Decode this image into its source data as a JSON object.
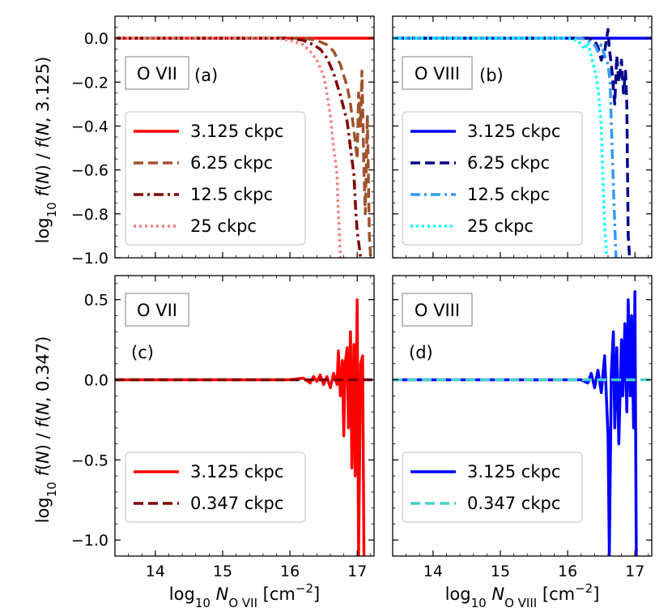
{
  "figure": {
    "ylabel_top_html": "log<tspan baseline-shift='sub' font-size='15'>10</tspan> <tspan font-style='italic'>f</tspan>(<tspan font-style='italic'>N</tspan>) / <tspan font-style='italic'>f</tspan>(<tspan font-style='italic'>N</tspan>, 3.125)",
    "ylabel_bottom_html": "log<tspan baseline-shift='sub' font-size='15'>10</tspan> <tspan font-style='italic'>f</tspan>(<tspan font-style='italic'>N</tspan>) / <tspan font-style='italic'>f</tspan>(<tspan font-style='italic'>N</tspan>, 0.347)",
    "ylabel_top_text": "log10 f(N) / f(N, 3.125)",
    "ylabel_bottom_text": "log10 f(N) / f(N, 0.347)",
    "xlabel_left_text": "log10 N_O VII [cm^-2]",
    "xlabel_right_text": "log10 N_O VIII [cm^-2]"
  },
  "chart_data": [
    {
      "id": "a",
      "type": "line",
      "panel_label": "(a)",
      "ion_label": "O VII",
      "xlim": [
        13.4,
        17.25
      ],
      "ylim": [
        -1.0,
        0.1
      ],
      "xticks": [
        14,
        15,
        16,
        17
      ],
      "yticks": [
        0.0,
        -0.2,
        -0.4,
        -0.6,
        -0.8,
        -1.0
      ],
      "ytick_labels": [
        "0.0",
        "−0.2",
        "−0.4",
        "−0.6",
        "−0.8",
        "−1.0"
      ],
      "legend": [
        "3.125 ckpc",
        "6.25 ckpc",
        "12.5 ckpc",
        "25 ckpc"
      ],
      "series": [
        {
          "name": "3.125 ckpc",
          "color": "#ff0000",
          "dash": "solid",
          "x": [
            13.4,
            17.25
          ],
          "y": [
            0.0,
            0.0
          ]
        },
        {
          "name": "6.25 ckpc",
          "color": "#a0522d",
          "dash": "dashed",
          "x": [
            13.4,
            16.2,
            16.4,
            16.55,
            16.65,
            16.75,
            16.85,
            16.9,
            16.95,
            17.0,
            17.02,
            17.05,
            17.07,
            17.1,
            17.12,
            17.15,
            17.18,
            17.2
          ],
          "y": [
            0.0,
            0.0,
            -0.01,
            -0.03,
            -0.06,
            -0.12,
            -0.22,
            -0.3,
            -0.42,
            -0.55,
            -0.25,
            -0.4,
            -0.15,
            -0.6,
            -0.8,
            -0.35,
            -0.9,
            -1.0
          ]
        },
        {
          "name": "12.5 ckpc",
          "color": "#800000",
          "dash": "dashdot",
          "x": [
            13.4,
            16.0,
            16.2,
            16.35,
            16.45,
            16.55,
            16.65,
            16.75,
            16.85,
            16.9,
            16.95,
            16.98,
            17.0,
            17.03,
            17.05
          ],
          "y": [
            0.0,
            0.0,
            -0.01,
            -0.03,
            -0.05,
            -0.09,
            -0.16,
            -0.26,
            -0.38,
            -0.5,
            -0.62,
            -0.8,
            -0.88,
            -0.95,
            -1.0
          ]
        },
        {
          "name": "25 ckpc",
          "color": "#f08080",
          "dash": "dotted",
          "x": [
            13.4,
            15.8,
            16.0,
            16.2,
            16.3,
            16.4,
            16.5,
            16.55,
            16.6,
            16.65,
            16.7,
            16.72,
            16.75
          ],
          "y": [
            0.0,
            0.0,
            -0.01,
            -0.03,
            -0.06,
            -0.1,
            -0.17,
            -0.25,
            -0.35,
            -0.5,
            -0.62,
            -0.8,
            -1.0
          ]
        }
      ]
    },
    {
      "id": "b",
      "type": "line",
      "panel_label": "(b)",
      "ion_label": "O VIII",
      "xlim": [
        13.4,
        17.25
      ],
      "ylim": [
        -1.0,
        0.1
      ],
      "xticks": [
        14,
        15,
        16,
        17
      ],
      "yticks": [
        0.0,
        -0.2,
        -0.4,
        -0.6,
        -0.8,
        -1.0
      ],
      "legend": [
        "3.125 ckpc",
        "6.25 ckpc",
        "12.5 ckpc",
        "25 ckpc"
      ],
      "series": [
        {
          "name": "3.125 ckpc",
          "color": "#0000ff",
          "dash": "solid",
          "x": [
            13.4,
            17.25
          ],
          "y": [
            0.0,
            0.0
          ]
        },
        {
          "name": "6.25 ckpc",
          "color": "#00008b",
          "dash": "dashed",
          "x": [
            13.4,
            16.3,
            16.4,
            16.45,
            16.5,
            16.55,
            16.6,
            16.62,
            16.65,
            16.7,
            16.73,
            16.76,
            16.8,
            16.83,
            16.86,
            16.88,
            16.9,
            16.92
          ],
          "y": [
            0.0,
            0.0,
            -0.01,
            -0.04,
            -0.1,
            -0.06,
            0.04,
            -0.05,
            -0.12,
            -0.3,
            -0.08,
            -0.2,
            -0.1,
            -0.25,
            -0.15,
            -0.3,
            -0.9,
            -1.0
          ]
        },
        {
          "name": "12.5 ckpc",
          "color": "#3399ff",
          "dash": "dashdot",
          "x": [
            13.4,
            16.2,
            16.3,
            16.4,
            16.45,
            16.5,
            16.55,
            16.6,
            16.63,
            16.66,
            16.7,
            16.72
          ],
          "y": [
            0.0,
            0.0,
            -0.01,
            -0.03,
            -0.06,
            -0.03,
            -0.08,
            -0.12,
            -0.2,
            -0.5,
            -0.85,
            -1.0
          ]
        },
        {
          "name": "25 ckpc",
          "color": "#00ffff",
          "dash": "dotted",
          "x": [
            13.4,
            16.0,
            16.15,
            16.25,
            16.3,
            16.35,
            16.4,
            16.45,
            16.5,
            16.52,
            16.55,
            16.58
          ],
          "y": [
            0.0,
            0.0,
            -0.01,
            -0.05,
            -0.02,
            -0.08,
            -0.14,
            -0.22,
            -0.4,
            -0.6,
            -0.85,
            -1.0
          ]
        }
      ]
    },
    {
      "id": "c",
      "type": "line",
      "panel_label": "(c)",
      "ion_label": "O VII",
      "xlim": [
        13.4,
        17.25
      ],
      "ylim": [
        -1.1,
        0.65
      ],
      "xticks": [
        14,
        15,
        16,
        17
      ],
      "xtick_labels": [
        "14",
        "15",
        "16",
        "17"
      ],
      "yticks": [
        0.5,
        0.0,
        -0.5,
        -1.0
      ],
      "ytick_labels": [
        "0.5",
        "0.0",
        "−0.5",
        "−1.0"
      ],
      "legend": [
        "3.125 ckpc",
        "0.347 ckpc"
      ],
      "series": [
        {
          "name": "3.125 ckpc",
          "color": "#ff0000",
          "dash": "solid",
          "x": [
            13.4,
            16.0,
            16.2,
            16.3,
            16.35,
            16.4,
            16.45,
            16.5,
            16.55,
            16.6,
            16.65,
            16.7,
            16.72,
            16.75,
            16.78,
            16.8,
            16.82,
            16.85,
            16.87,
            16.9,
            16.92,
            16.95,
            16.97,
            17.0,
            17.02,
            17.05,
            17.08,
            17.1
          ],
          "y": [
            0.0,
            0.0,
            0.01,
            -0.02,
            0.02,
            -0.01,
            0.03,
            -0.03,
            0.02,
            -0.05,
            0.04,
            -0.03,
            0.18,
            -0.1,
            0.12,
            -0.35,
            0.1,
            0.2,
            -0.3,
            0.3,
            -0.55,
            0.22,
            -0.6,
            0.5,
            -1.1,
            0.1,
            0.15,
            -1.1
          ]
        },
        {
          "name": "0.347 ckpc",
          "color": "#800000",
          "dash": "dashed",
          "x": [
            13.4,
            17.25
          ],
          "y": [
            0.0,
            0.0
          ]
        }
      ]
    },
    {
      "id": "d",
      "type": "line",
      "panel_label": "(d)",
      "ion_label": "O VIII",
      "xlim": [
        13.4,
        17.25
      ],
      "ylim": [
        -1.1,
        0.65
      ],
      "xticks": [
        14,
        15,
        16,
        17
      ],
      "xtick_labels": [
        "14",
        "15",
        "16",
        "17"
      ],
      "yticks": [
        0.5,
        0.0,
        -0.5,
        -1.0
      ],
      "legend": [
        "3.125 ckpc",
        "0.347 ckpc"
      ],
      "series": [
        {
          "name": "3.125 ckpc",
          "color": "#0000ff",
          "dash": "solid",
          "x": [
            13.4,
            16.2,
            16.3,
            16.35,
            16.4,
            16.45,
            16.5,
            16.55,
            16.6,
            16.62,
            16.65,
            16.68,
            16.7,
            16.73,
            16.76,
            16.8,
            16.82,
            16.85,
            16.88,
            16.9,
            16.93,
            16.95,
            16.98,
            17.0,
            17.02
          ],
          "y": [
            0.0,
            0.0,
            -0.02,
            0.04,
            -0.05,
            0.06,
            -0.08,
            0.15,
            -0.35,
            -1.1,
            0.05,
            0.3,
            -0.3,
            0.2,
            -0.4,
            0.25,
            -0.1,
            0.35,
            -0.2,
            0.5,
            -0.1,
            0.4,
            -0.3,
            0.55,
            -1.1
          ]
        },
        {
          "name": "0.347 ckpc",
          "color": "#48d1cc",
          "dash": "dashed",
          "x": [
            13.4,
            17.25
          ],
          "y": [
            0.0,
            0.0
          ]
        }
      ]
    }
  ]
}
